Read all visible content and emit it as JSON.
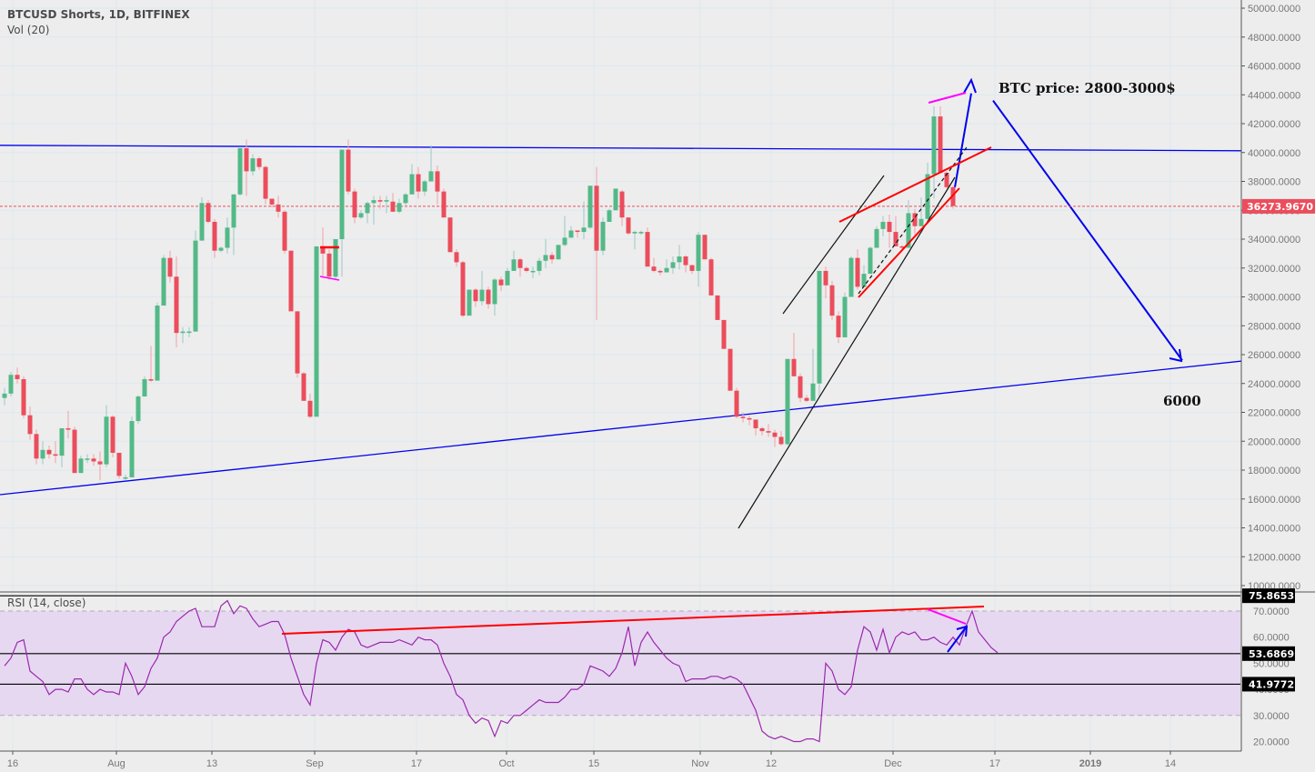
{
  "header": {
    "title": "BTCUSD Shorts, 1D, BITFINEX",
    "volume_label": "Vol (20)"
  },
  "rsi_panel": {
    "title": "RSI (14, close)"
  },
  "annotations": {
    "target_text": "BTC price: 2800-3000$",
    "low_target_text": "6000"
  },
  "colors": {
    "background": "#ededed",
    "up": "#53b987",
    "down": "#eb4d5c",
    "grid": "#dde8f0",
    "trend_blue": "#0000ee",
    "trend_red": "#ff0000",
    "magenta": "#ff00ff",
    "rsi_line": "#9c27b0",
    "rsi_band": "#e6d8f0",
    "last_price_badge": "#eb4d5c"
  },
  "chart_data": [
    {
      "type": "candlestick",
      "title": "BTCUSD Shorts, 1D, BITFINEX",
      "xlabel": "",
      "ylabel": "",
      "ylim": [
        10000,
        50000
      ],
      "y_ticks": [
        "50000.0000",
        "48000.0000",
        "46000.0000",
        "44000.0000",
        "42000.0000",
        "40000.0000",
        "38000.0000",
        "36000.0000",
        "34000.0000",
        "32000.0000",
        "30000.0000",
        "28000.0000",
        "26000.0000",
        "24000.0000",
        "22000.0000",
        "20000.0000",
        "18000.0000",
        "16000.0000",
        "14000.0000",
        "12000.0000",
        "10000.0000"
      ],
      "x_ticks": [
        {
          "label": "16",
          "x": 14
        },
        {
          "label": "Aug",
          "x": 128
        },
        {
          "label": "13",
          "x": 233
        },
        {
          "label": "Sep",
          "x": 346
        },
        {
          "label": "17",
          "x": 458
        },
        {
          "label": "Oct",
          "x": 557
        },
        {
          "label": "15",
          "x": 653
        },
        {
          "label": "Nov",
          "x": 770
        },
        {
          "label": "12",
          "x": 848
        },
        {
          "label": "Dec",
          "x": 982
        },
        {
          "label": "17",
          "x": 1094
        },
        {
          "label": "2019",
          "x": 1199
        },
        {
          "label": "14",
          "x": 1287
        }
      ],
      "last_price": "36273.9670",
      "grid": true,
      "candles": [
        [
          23000,
          23300,
          22500,
          23700
        ],
        [
          23300,
          24600,
          23100,
          24800
        ],
        [
          24600,
          24300,
          24000,
          25100
        ],
        [
          24300,
          21800,
          21600,
          24500
        ],
        [
          21800,
          20500,
          20100,
          22400
        ],
        [
          20500,
          18800,
          18400,
          20800
        ],
        [
          18800,
          19400,
          18400,
          20000
        ],
        [
          19400,
          19100,
          18800,
          19700
        ],
        [
          19100,
          19000,
          18500,
          20000
        ],
        [
          19000,
          20900,
          18200,
          20900
        ],
        [
          20900,
          20800,
          20200,
          22100
        ],
        [
          20800,
          17800,
          17800,
          21000
        ],
        [
          17800,
          18800,
          18400,
          19000
        ],
        [
          18800,
          18800,
          18500,
          19100
        ],
        [
          18800,
          18600,
          18300,
          19100
        ],
        [
          18600,
          18400,
          17300,
          19300
        ],
        [
          18400,
          21700,
          18200,
          22500
        ],
        [
          21700,
          19200,
          18900,
          21800
        ],
        [
          19200,
          17600,
          17400,
          19200
        ],
        [
          17400,
          17500,
          17300,
          17700
        ],
        [
          17500,
          21400,
          17500,
          21700
        ],
        [
          21400,
          23100,
          21200,
          23200
        ],
        [
          23100,
          24300,
          23100,
          24500
        ],
        [
          24300,
          24200,
          24100,
          26600
        ],
        [
          24200,
          29400,
          24200,
          29600
        ],
        [
          29400,
          32700,
          29400,
          32900
        ],
        [
          32700,
          31400,
          31000,
          33200
        ],
        [
          31400,
          27500,
          26500,
          32800
        ],
        [
          27500,
          27600,
          26800,
          27900
        ],
        [
          27600,
          27600,
          27200,
          27900
        ],
        [
          27600,
          33900,
          27600,
          34600
        ],
        [
          33900,
          36500,
          36200,
          36900
        ],
        [
          36500,
          35200,
          35100,
          36700
        ],
        [
          35200,
          33200,
          32700,
          35400
        ],
        [
          33200,
          33400,
          33100,
          33500
        ],
        [
          33400,
          34800,
          33000,
          35500
        ],
        [
          34800,
          37100,
          32900,
          37100
        ],
        [
          37100,
          40300,
          37000,
          40400
        ],
        [
          40300,
          38700,
          37000,
          40900
        ],
        [
          38700,
          39600,
          38400,
          39900
        ],
        [
          39600,
          39000,
          38800,
          39700
        ],
        [
          39000,
          36800,
          36400,
          39100
        ],
        [
          36800,
          36400,
          36200,
          36800
        ],
        [
          36400,
          35900,
          35500,
          37000
        ],
        [
          35900,
          33200,
          33000,
          36000
        ],
        [
          33200,
          29000,
          29000,
          33200
        ],
        [
          29000,
          24700,
          24400,
          29000
        ],
        [
          24700,
          22800,
          22800,
          24800
        ],
        [
          22800,
          21700,
          21600,
          23300
        ],
        [
          21700,
          33500,
          21700,
          33500
        ],
        [
          33500,
          33000,
          31300,
          34800
        ],
        [
          33000,
          31400,
          31200,
          33300
        ],
        [
          31400,
          34000,
          31200,
          34000
        ],
        [
          34000,
          40200,
          31400,
          40200
        ],
        [
          40200,
          37300,
          37100,
          40900
        ],
        [
          37300,
          35500,
          35100,
          37500
        ],
        [
          35500,
          35800,
          35400,
          36000
        ],
        [
          35800,
          36500,
          35100,
          36600
        ],
        [
          36500,
          36700,
          35000,
          37000
        ],
        [
          36700,
          36600,
          36100,
          37000
        ],
        [
          36600,
          36700,
          35800,
          37000
        ],
        [
          36600,
          35900,
          35900,
          37200
        ],
        [
          35900,
          36500,
          35800,
          36800
        ],
        [
          36500,
          37100,
          36200,
          37200
        ],
        [
          37100,
          38500,
          37300,
          39200
        ],
        [
          38500,
          37300,
          36800,
          39000
        ],
        [
          37300,
          38000,
          37000,
          38100
        ],
        [
          38000,
          38700,
          38100,
          40500
        ],
        [
          38700,
          37300,
          36400,
          39100
        ],
        [
          37300,
          35500,
          35500,
          37500
        ],
        [
          35500,
          33100,
          33100,
          35500
        ],
        [
          33100,
          32400,
          32100,
          33300
        ],
        [
          32400,
          28700,
          28600,
          32500
        ],
        [
          28700,
          30500,
          28900,
          30500
        ],
        [
          30500,
          29700,
          29300,
          30600
        ],
        [
          29700,
          30500,
          29400,
          31800
        ],
        [
          30500,
          29500,
          29200,
          30700
        ],
        [
          29500,
          31200,
          28700,
          31300
        ],
        [
          31200,
          30800,
          30400,
          31400
        ],
        [
          30800,
          31800,
          30900,
          32000
        ],
        [
          31800,
          32600,
          32200,
          33200
        ],
        [
          32600,
          32000,
          31400,
          32700
        ],
        [
          32000,
          31800,
          31700,
          32100
        ],
        [
          31800,
          31800,
          31300,
          32100
        ],
        [
          31800,
          32500,
          31500,
          32700
        ],
        [
          32500,
          32900,
          32000,
          34000
        ],
        [
          32900,
          32600,
          32300,
          33100
        ],
        [
          32600,
          33600,
          33000,
          33600
        ],
        [
          33600,
          34100,
          33500,
          35600
        ],
        [
          34100,
          34600,
          34300,
          34900
        ],
        [
          34600,
          34500,
          34100,
          34600
        ],
        [
          34500,
          34800,
          34000,
          36600
        ],
        [
          34800,
          37700,
          34700,
          37700
        ],
        [
          37700,
          33200,
          28400,
          39000
        ],
        [
          33200,
          35200,
          32900,
          35500
        ],
        [
          35200,
          36000,
          36100,
          36100
        ],
        [
          36000,
          37500,
          36000,
          37000
        ],
        [
          37300,
          35500,
          34900,
          37400
        ],
        [
          35500,
          34400,
          34300,
          35500
        ],
        [
          34400,
          34500,
          33300,
          34600
        ],
        [
          34400,
          34500,
          34300,
          34600
        ],
        [
          34500,
          32100,
          32100,
          34800
        ],
        [
          32100,
          31800,
          31700,
          32700
        ],
        [
          31800,
          31700,
          31500,
          31900
        ],
        [
          31700,
          32000,
          31900,
          32600
        ],
        [
          32000,
          32400,
          31600,
          32800
        ],
        [
          32400,
          32800,
          31900,
          33600
        ],
        [
          32800,
          32200,
          31700,
          32900
        ],
        [
          32200,
          31800,
          31600,
          32200
        ],
        [
          31800,
          34300,
          30700,
          34500
        ],
        [
          34300,
          32600,
          32600,
          34300
        ],
        [
          32600,
          30100,
          30100,
          32700
        ],
        [
          30100,
          28400,
          28400,
          30100
        ],
        [
          28400,
          26400,
          26400,
          28400
        ],
        [
          26400,
          23500,
          23500,
          26400
        ],
        [
          23500,
          21700,
          21600,
          23700
        ],
        [
          21700,
          21600,
          21300,
          22000
        ],
        [
          21600,
          21500,
          21100,
          21800
        ],
        [
          21500,
          20900,
          20400,
          21500
        ],
        [
          20900,
          20700,
          20400,
          21000
        ],
        [
          20700,
          20600,
          20300,
          21200
        ],
        [
          20600,
          20300,
          19600,
          20800
        ],
        [
          20300,
          19800,
          19700,
          20700
        ],
        [
          19800,
          25700,
          19700,
          25700
        ],
        [
          25700,
          24500,
          24500,
          27500
        ],
        [
          24500,
          23000,
          22700,
          24700
        ],
        [
          23000,
          22800,
          22700,
          23200
        ],
        [
          22800,
          24000,
          23500,
          26400
        ],
        [
          24000,
          31800,
          23000,
          31800
        ],
        [
          31800,
          30800,
          29900,
          32100
        ],
        [
          30800,
          28700,
          28400,
          31100
        ],
        [
          28700,
          27200,
          26800,
          29000
        ],
        [
          27200,
          30000,
          27300,
          30300
        ],
        [
          30000,
          32700,
          32600,
          32800
        ],
        [
          32700,
          30700,
          30500,
          33300
        ],
        [
          30700,
          31600,
          31400,
          32200
        ],
        [
          31600,
          33400,
          31800,
          33500
        ],
        [
          33400,
          34700,
          34300,
          34900
        ],
        [
          34700,
          35200,
          34200,
          35600
        ],
        [
          35200,
          34500,
          33400,
          35700
        ],
        [
          34500,
          33500,
          33600,
          35600
        ],
        [
          33500,
          33400,
          33200,
          33600
        ],
        [
          33400,
          35800,
          35400,
          36700
        ],
        [
          35800,
          34900,
          34300,
          36100
        ],
        [
          34900,
          35400,
          35200,
          36900
        ],
        [
          35400,
          38500,
          35400,
          39300
        ],
        [
          38500,
          42500,
          36800,
          43200
        ],
        [
          42500,
          38600,
          38600,
          43200
        ],
        [
          38600,
          37600,
          37500,
          38700
        ],
        [
          37600,
          36300,
          36100,
          37700
        ]
      ],
      "trendlines": [
        {
          "name": "resistance",
          "color": "blue",
          "from": [
            0,
            40500
          ],
          "to": [
            1446,
            40100
          ]
        },
        {
          "name": "support",
          "color": "blue",
          "from": [
            0,
            16300
          ],
          "to": [
            1446,
            26100
          ]
        },
        {
          "name": "projection-up",
          "color": "blue",
          "from": [
            1050,
            37600
          ],
          "to": [
            1068,
            44100
          ]
        },
        {
          "name": "projection-down",
          "color": "blue",
          "from": [
            1092,
            43600
          ],
          "to": [
            1300,
            25600
          ]
        }
      ]
    },
    {
      "type": "line",
      "title": "RSI (14, close)",
      "ylim": [
        16,
        80
      ],
      "y_ticks": [
        "70.0000",
        "60.0000",
        "50.0000",
        "40.0000",
        "30.0000",
        "20.0000"
      ],
      "markers": [
        "75.8653",
        "53.6869",
        "41.9772"
      ],
      "bands": {
        "upper": 70,
        "lower": 30
      },
      "values": [
        49,
        52,
        58,
        59,
        47,
        45,
        43,
        38,
        40,
        40,
        39,
        44,
        44,
        40,
        38,
        40,
        39,
        39,
        38,
        50,
        45,
        38,
        41,
        48,
        52,
        60,
        62,
        66,
        68,
        70,
        71,
        64,
        64,
        64,
        72,
        74,
        69,
        72,
        71,
        67,
        64,
        65,
        66,
        66,
        61,
        52,
        45,
        38,
        34,
        50,
        59,
        58,
        55,
        60,
        63,
        62,
        57,
        56,
        57,
        58,
        58,
        58,
        59,
        58,
        57,
        60,
        59,
        59,
        57,
        50,
        45,
        38,
        36,
        30,
        27,
        29,
        28,
        22,
        28,
        27,
        30,
        30,
        32,
        34,
        36,
        35,
        35,
        35,
        37,
        40,
        40,
        42,
        49,
        48,
        47,
        45,
        48,
        54,
        64,
        49,
        58,
        62,
        58,
        55,
        52,
        50,
        49,
        43,
        44,
        44,
        44,
        45,
        45,
        44,
        45,
        44,
        42,
        37,
        32,
        24,
        22,
        21,
        22,
        21,
        20,
        20,
        21,
        21,
        20,
        50,
        47,
        40,
        38,
        41,
        55,
        64,
        62,
        55,
        63,
        54,
        60,
        62,
        61,
        62,
        59,
        59,
        60,
        58,
        57,
        60,
        57,
        64,
        70,
        62,
        59,
        56,
        54
      ]
    }
  ]
}
